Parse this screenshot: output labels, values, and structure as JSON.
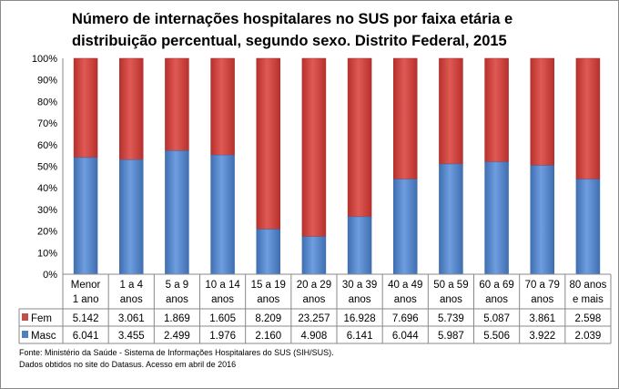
{
  "chart_data": {
    "type": "bar",
    "stacked": true,
    "percent": true,
    "title": "Número de internações hospitalares no SUS por faixa etária e distribuição percentual, segundo sexo.  Distrito Federal, 2015",
    "categories": [
      [
        "Menor",
        "1 ano"
      ],
      [
        "1 a 4",
        "anos"
      ],
      [
        "5 a 9",
        "anos"
      ],
      [
        "10 a 14",
        "anos"
      ],
      [
        "15 a 19",
        "anos"
      ],
      [
        "20 a 29",
        "anos"
      ],
      [
        "30 a 39",
        "anos"
      ],
      [
        "40 a 49",
        "anos"
      ],
      [
        "50 a 59",
        "anos"
      ],
      [
        "60 a 69",
        "anos"
      ],
      [
        "70 a 79",
        "anos"
      ],
      [
        "80 anos",
        "e mais"
      ]
    ],
    "series": [
      {
        "name": "Masc",
        "color": "#4F81BD",
        "values": [
          "6.041",
          "3.455",
          "2.499",
          "1.976",
          "2.160",
          "4.908",
          "6.141",
          "6.044",
          "5.987",
          "5.506",
          "3.922",
          "2.039"
        ]
      },
      {
        "name": "Fem",
        "color": "#C0504D",
        "values": [
          "5.142",
          "3.061",
          "1.869",
          "1.605",
          "8.209",
          "23.257",
          "16.928",
          "7.696",
          "5.739",
          "5.087",
          "3.861",
          "2.598"
        ]
      }
    ],
    "yticks": [
      "0%",
      "10%",
      "20%",
      "30%",
      "40%",
      "50%",
      "60%",
      "70%",
      "80%",
      "90%",
      "100%"
    ],
    "ylim": [
      0,
      100
    ],
    "grid": false,
    "legend": "data-table"
  },
  "source": [
    "Fonte: Ministério da Saúde - Sistema de Informações Hospitalares do SUS (SIH/SUS).",
    "Dados obtidos no site do Datasus. Acesso em abril de 2016"
  ]
}
